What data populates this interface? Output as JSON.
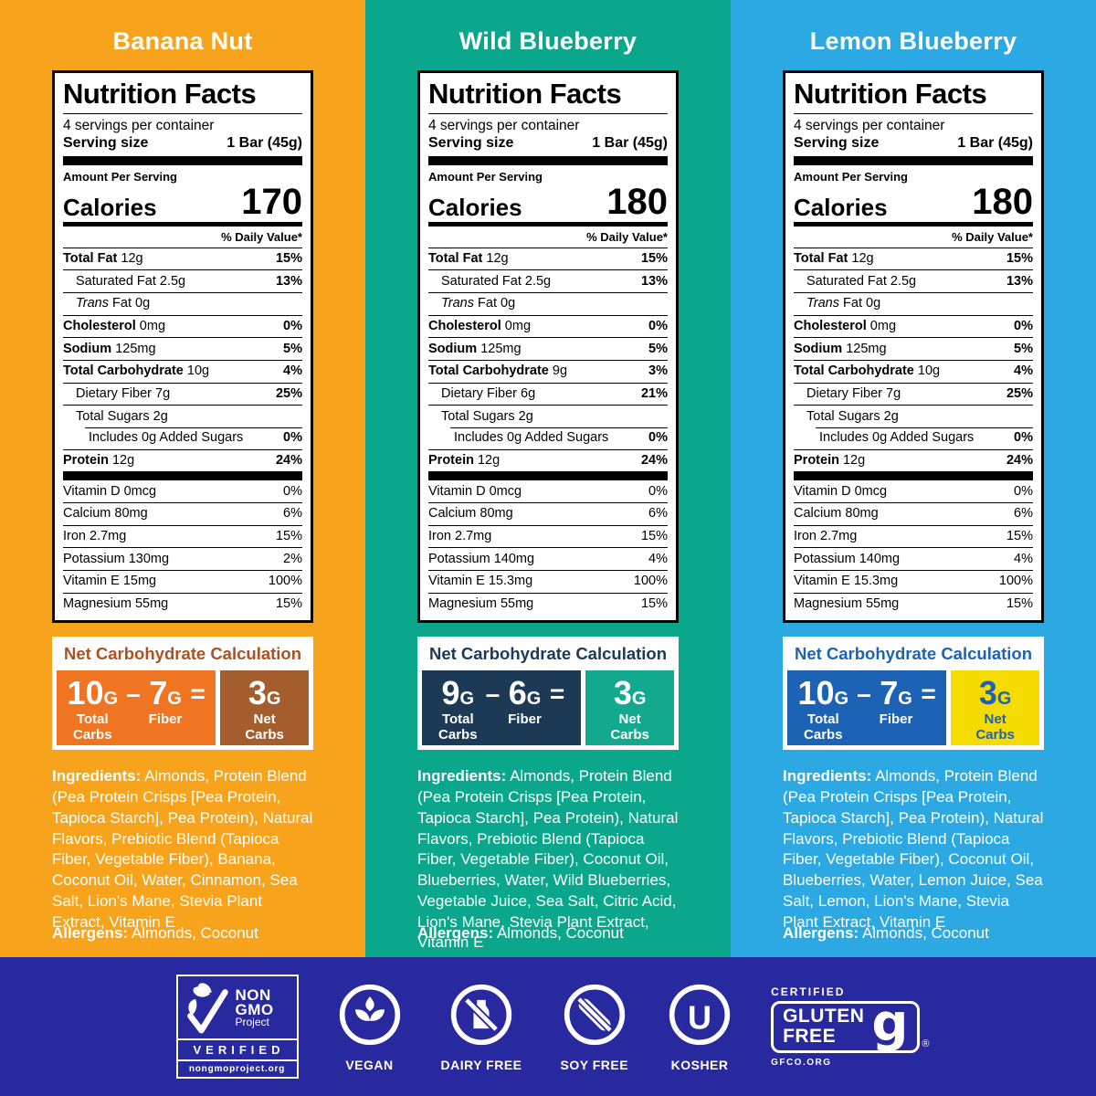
{
  "colors": {
    "footer_bg": "#28289F",
    "label_ink": "#000000",
    "text_on_panels": "#FFFFFF"
  },
  "panels": [
    {
      "flavor": "Banana Nut",
      "colors": {
        "bg": "#F7A31C",
        "calc_header": "#AC5122",
        "calc_left": "#EF7522",
        "calc_right": "#A45D2D",
        "calc_right_text": "#FFFFFF"
      },
      "nutrition": {
        "title": "Nutrition Facts",
        "servings": "4 servings per container",
        "serving_size_label": "Serving size",
        "serving_size_value": "1 Bar (45g)",
        "amount_label": "Amount Per Serving",
        "calories_label": "Calories",
        "calories": "170",
        "dv_note": "% Daily Value*",
        "rows": [
          {
            "b": "Total Fat",
            "r": "12g",
            "dv": "15%"
          },
          {
            "n": "Saturated Fat 2.5g",
            "dv": "13%",
            "ind": 1
          },
          {
            "it": "Trans",
            "r": "Fat 0g",
            "dv": "",
            "ind": 1
          },
          {
            "b": "Cholesterol",
            "r": "0mg",
            "dv": "0%"
          },
          {
            "b": "Sodium",
            "r": "125mg",
            "dv": "5%"
          },
          {
            "b": "Total Carbohydrate",
            "r": "10g",
            "dv": "4%"
          },
          {
            "n": "Dietary Fiber 7g",
            "dv": "25%",
            "ind": 1
          },
          {
            "n": "Total Sugars 2g",
            "dv": "",
            "ind": 1
          },
          {
            "n": "Includes 0g Added Sugars",
            "dv": "0%",
            "ind": 2,
            "inset": true
          },
          {
            "b": "Protein",
            "r": "12g",
            "dv": "24%"
          }
        ],
        "vitamins": [
          {
            "n": "Vitamin D 0mcg",
            "dv": "0%"
          },
          {
            "n": "Calcium 80mg",
            "dv": "6%"
          },
          {
            "n": "Iron 2.7mg",
            "dv": "15%"
          },
          {
            "n": "Potassium 130mg",
            "dv": "2%"
          },
          {
            "n": "Vitamin E 15mg",
            "dv": "100%"
          },
          {
            "n": "Magnesium 55mg",
            "dv": "15%"
          }
        ]
      },
      "calc": {
        "title": "Net Carbohydrate Calculation",
        "total": {
          "val": "10",
          "unit": "G",
          "label": [
            "Total",
            "Carbs"
          ]
        },
        "minus": "–",
        "fiber": {
          "val": "7",
          "unit": "G",
          "label": [
            "Fiber"
          ]
        },
        "equals": "=",
        "net": {
          "val": "3",
          "unit": "G",
          "label": [
            "Net",
            "Carbs"
          ]
        }
      },
      "ingredients_label": "Ingredients:",
      "ingredients": "Almonds, Protein Blend (Pea Protein Crisps [Pea Protein, Tapioca Starch], Pea Protein), Natural Flavors, Prebiotic Blend (Tapioca Fiber, Vegetable Fiber), Banana, Coconut Oil, Water, Cinnamon, Sea Salt, Lion's Mane, Stevia Plant Extract, Vitamin E",
      "allergens_label": "Allergens:",
      "allergens": "Almonds, Coconut"
    },
    {
      "flavor": "Wild Blueberry",
      "colors": {
        "bg": "#0BA78C",
        "calc_header": "#1C3A56",
        "calc_left": "#1C3A56",
        "calc_right": "#12A98E",
        "calc_right_text": "#FFFFFF"
      },
      "nutrition": {
        "title": "Nutrition Facts",
        "servings": "4 servings per container",
        "serving_size_label": "Serving size",
        "serving_size_value": "1 Bar (45g)",
        "amount_label": "Amount Per Serving",
        "calories_label": "Calories",
        "calories": "180",
        "dv_note": "% Daily Value*",
        "rows": [
          {
            "b": "Total Fat",
            "r": "12g",
            "dv": "15%"
          },
          {
            "n": "Saturated Fat 2.5g",
            "dv": "13%",
            "ind": 1
          },
          {
            "it": "Trans",
            "r": "Fat 0g",
            "dv": "",
            "ind": 1
          },
          {
            "b": "Cholesterol",
            "r": "0mg",
            "dv": "0%"
          },
          {
            "b": "Sodium",
            "r": "125mg",
            "dv": "5%"
          },
          {
            "b": "Total Carbohydrate",
            "r": "9g",
            "dv": "3%"
          },
          {
            "n": "Dietary Fiber 6g",
            "dv": "21%",
            "ind": 1
          },
          {
            "n": "Total Sugars 2g",
            "dv": "",
            "ind": 1
          },
          {
            "n": "Includes 0g Added Sugars",
            "dv": "0%",
            "ind": 2,
            "inset": true
          },
          {
            "b": "Protein",
            "r": "12g",
            "dv": "24%"
          }
        ],
        "vitamins": [
          {
            "n": "Vitamin D 0mcg",
            "dv": "0%"
          },
          {
            "n": "Calcium 80mg",
            "dv": "6%"
          },
          {
            "n": "Iron 2.7mg",
            "dv": "15%"
          },
          {
            "n": "Potassium 140mg",
            "dv": "4%"
          },
          {
            "n": "Vitamin E 15.3mg",
            "dv": "100%"
          },
          {
            "n": "Magnesium 55mg",
            "dv": "15%"
          }
        ]
      },
      "calc": {
        "title": "Net Carbohydrate Calculation",
        "total": {
          "val": "9",
          "unit": "G",
          "label": [
            "Total",
            "Carbs"
          ]
        },
        "minus": "–",
        "fiber": {
          "val": "6",
          "unit": "G",
          "label": [
            "Fiber"
          ]
        },
        "equals": "=",
        "net": {
          "val": "3",
          "unit": "G",
          "label": [
            "Net",
            "Carbs"
          ]
        }
      },
      "ingredients_label": "Ingredients:",
      "ingredients": "Almonds, Protein Blend (Pea Protein Crisps [Pea Protein, Tapioca Starch], Pea Protein), Natural Flavors, Prebiotic Blend (Tapioca Fiber, Vegetable Fiber), Coconut Oil, Blueberries, Water, Wild Blueberries, Vegetable Juice, Sea Salt, Citric Acid, Lion's Mane, Stevia Plant Extract, Vitamin E",
      "allergens_label": "Allergens:",
      "allergens": "Almonds, Coconut"
    },
    {
      "flavor": "Lemon Blueberry",
      "colors": {
        "bg": "#2CA9E2",
        "calc_header": "#1D63B5",
        "calc_left": "#1D63B5",
        "calc_right": "#F6DB00",
        "calc_right_text": "#1D63B5"
      },
      "nutrition": {
        "title": "Nutrition Facts",
        "servings": "4 servings per container",
        "serving_size_label": "Serving size",
        "serving_size_value": "1 Bar (45g)",
        "amount_label": "Amount Per Serving",
        "calories_label": "Calories",
        "calories": "180",
        "dv_note": "% Daily Value*",
        "rows": [
          {
            "b": "Total Fat",
            "r": "12g",
            "dv": "15%"
          },
          {
            "n": "Saturated Fat 2.5g",
            "dv": "13%",
            "ind": 1
          },
          {
            "it": "Trans",
            "r": "Fat 0g",
            "dv": "",
            "ind": 1
          },
          {
            "b": "Cholesterol",
            "r": "0mg",
            "dv": "0%"
          },
          {
            "b": "Sodium",
            "r": "125mg",
            "dv": "5%"
          },
          {
            "b": "Total Carbohydrate",
            "r": "10g",
            "dv": "4%"
          },
          {
            "n": "Dietary Fiber 7g",
            "dv": "25%",
            "ind": 1
          },
          {
            "n": "Total Sugars 2g",
            "dv": "",
            "ind": 1
          },
          {
            "n": "Includes 0g Added Sugars",
            "dv": "0%",
            "ind": 2,
            "inset": true
          },
          {
            "b": "Protein",
            "r": "12g",
            "dv": "24%"
          }
        ],
        "vitamins": [
          {
            "n": "Vitamin D 0mcg",
            "dv": "0%"
          },
          {
            "n": "Calcium 80mg",
            "dv": "6%"
          },
          {
            "n": "Iron 2.7mg",
            "dv": "15%"
          },
          {
            "n": "Potassium 140mg",
            "dv": "4%"
          },
          {
            "n": "Vitamin E 15.3mg",
            "dv": "100%"
          },
          {
            "n": "Magnesium 55mg",
            "dv": "15%"
          }
        ]
      },
      "calc": {
        "title": "Net Carbohydrate Calculation",
        "total": {
          "val": "10",
          "unit": "G",
          "label": [
            "Total",
            "Carbs"
          ]
        },
        "minus": "–",
        "fiber": {
          "val": "7",
          "unit": "G",
          "label": [
            "Fiber"
          ]
        },
        "equals": "=",
        "net": {
          "val": "3",
          "unit": "G",
          "label": [
            "Net",
            "Carbs"
          ]
        }
      },
      "ingredients_label": "Ingredients:",
      "ingredients": "Almonds, Protein Blend (Pea Protein Crisps [Pea Protein, Tapioca Starch], Pea Protein), Natural Flavors, Prebiotic Blend (Tapioca Fiber, Vegetable Fiber), Coconut Oil, Blueberries, Water, Lemon Juice, Sea Salt, Lemon, Lion's Mane, Stevia Plant Extract, Vitamin E",
      "allergens_label": "Allergens:",
      "allergens": "Almonds, Coconut"
    }
  ],
  "footer": {
    "nongmo": {
      "line1": "NON",
      "line2": "GMO",
      "line3": "Project",
      "verified": "VERIFIED",
      "url": "nongmoproject.org"
    },
    "badges": [
      {
        "label": "VEGAN"
      },
      {
        "label": "DAIRY FREE"
      },
      {
        "label": "SOY FREE"
      },
      {
        "label": "KOSHER",
        "glyph": "U"
      }
    ],
    "glutenfree": {
      "certified": "CERTIFIED",
      "word1": "GLUTEN",
      "word2": "FREE",
      "g": "g",
      "reg": "®",
      "org": "GFCO.ORG"
    }
  }
}
